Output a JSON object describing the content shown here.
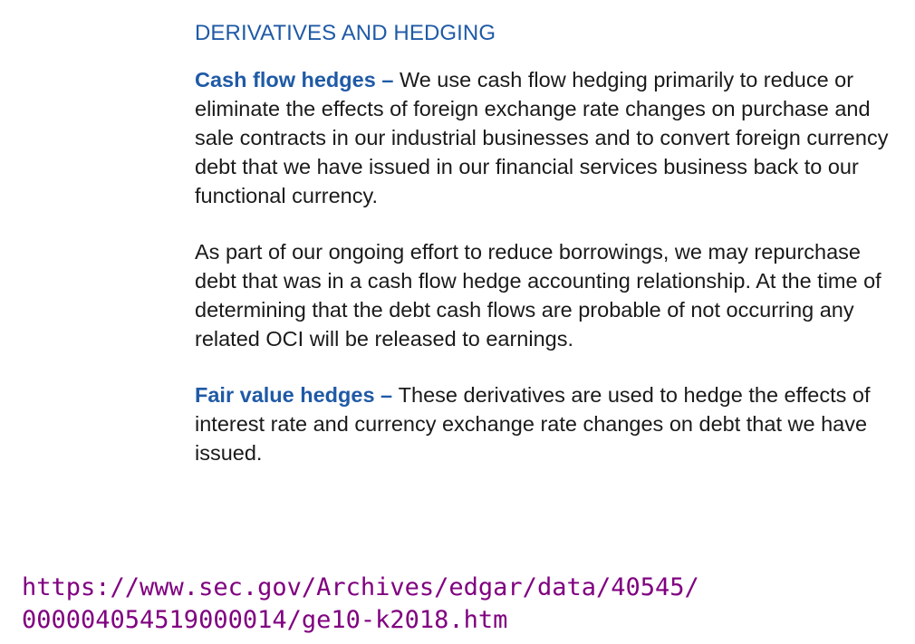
{
  "document": {
    "heading": "DERIVATIVES AND HEDGING",
    "paragraphs": [
      {
        "lead": "Cash flow hedges",
        "separator": " – ",
        "text": "We use cash flow hedging primarily to reduce or eliminate the effects of foreign exchange rate changes on purchase and sale contracts in our industrial businesses and to convert foreign currency debt that we have issued in our financial services business back to our functional currency."
      },
      {
        "text": "As part of our ongoing effort to reduce borrowings, we may repurchase debt that was in a cash flow hedge accounting relationship. At the time of determining that the debt cash flows are probable of not occurring any related OCI will be released to earnings."
      },
      {
        "lead": "Fair value hedges",
        "separator": " – ",
        "text": "These derivatives are used to hedge the effects of interest rate and currency exchange rate changes on debt that we have issued."
      }
    ]
  },
  "source": {
    "url_line1": "https://www.sec.gov/Archives/edgar/data/40545/",
    "url_line2": "000004054519000014/ge10-k2018.htm"
  },
  "colors": {
    "accent": "#1f5aa6",
    "body_text": "#1a1a1a",
    "link": "#800080"
  }
}
